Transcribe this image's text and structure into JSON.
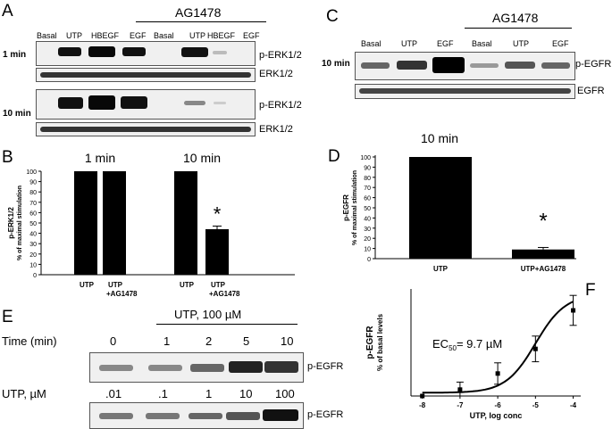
{
  "panel_labels": {
    "a": "A",
    "b": "B",
    "c": "C",
    "d": "D",
    "e": "E",
    "f": "F"
  },
  "panelA": {
    "treatment_header": "AG1478",
    "lanes": [
      "Basal",
      "UTP",
      "HBEGF",
      "EGF",
      "Basal",
      "UTP",
      "HBEGF",
      "EGF"
    ],
    "time1": "1 min",
    "time2": "10 min",
    "label_perk": "p-ERK1/2",
    "label_erk": "ERK1/2"
  },
  "panelC": {
    "treatment_header": "AG1478",
    "lanes": [
      "Basal",
      "UTP",
      "EGF",
      "Basal",
      "UTP",
      "EGF"
    ],
    "time": "10 min",
    "label_pegfr": "p-EGFR",
    "label_egfr": "EGFR"
  },
  "panelE": {
    "treatment_header": "UTP, 100 µM",
    "time_label": "Time (min)",
    "times": [
      "0",
      "1",
      "2",
      "5",
      "10"
    ],
    "dose_label": "UTP, µM",
    "doses": [
      ".01",
      ".1",
      "1",
      "10",
      "100"
    ],
    "label1": "p-EGFR",
    "label2": "p-EGFR"
  },
  "chart_data": [
    {
      "type": "bar",
      "panel": "B",
      "ylabel_line1": "p-ERK1/2",
      "ylabel_line2": "% of maximal stimulation",
      "ylim": [
        0,
        100
      ],
      "yticks": [
        0,
        10,
        20,
        30,
        40,
        50,
        60,
        70,
        80,
        90,
        100
      ],
      "groups": [
        "1 min",
        "10 min"
      ],
      "categories": [
        "UTP",
        "UTP +AG1478",
        "UTP",
        "UTP +AG1478"
      ],
      "category_lines": [
        [
          "UTP"
        ],
        [
          "UTP",
          "+AG1478"
        ],
        [
          "UTP"
        ],
        [
          "UTP",
          "+AG1478"
        ]
      ],
      "values": [
        100,
        100,
        100,
        44
      ],
      "errors": [
        0,
        0,
        0,
        3
      ],
      "significance": [
        "",
        "",
        "",
        "*"
      ],
      "bar_color": "#000000"
    },
    {
      "type": "bar",
      "panel": "D",
      "title": "10 min",
      "ylabel_line1": "p-EGFR",
      "ylabel_line2": "% of maximal stimulation",
      "ylim": [
        0,
        100
      ],
      "yticks": [
        0,
        10,
        20,
        30,
        40,
        50,
        60,
        70,
        80,
        90,
        100
      ],
      "categories": [
        "UTP",
        "UTP+AG1478"
      ],
      "values": [
        100,
        9
      ],
      "errors": [
        0,
        2
      ],
      "significance": [
        "",
        "*"
      ],
      "bar_color": "#000000"
    },
    {
      "type": "scatter",
      "panel": "F",
      "ylabel_line1": "p-EGFR",
      "ylabel_line2": "% of basal levels",
      "xlabel": "UTP, log conc",
      "xlim": [
        -8.3,
        -3.8
      ],
      "ylim": [
        0,
        100
      ],
      "xticks": [
        -8,
        -7,
        -6,
        -5,
        -4
      ],
      "x": [
        -8,
        -7,
        -6,
        -5,
        -4
      ],
      "y": [
        0,
        6,
        21,
        44,
        80
      ],
      "errors": [
        0,
        7,
        10,
        12,
        14
      ],
      "fit": "sigmoid",
      "annotation_prefix": "EC",
      "annotation_sub": "50",
      "annotation_value": "= 9.7 µM"
    }
  ]
}
